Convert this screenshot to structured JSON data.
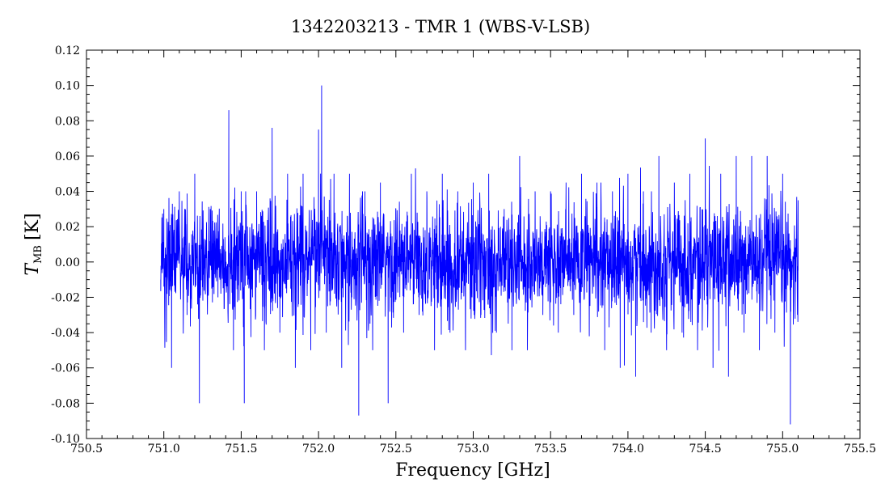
{
  "chart_data": {
    "type": "line",
    "title": "1342203213 - TMR 1 (WBS-V-LSB)",
    "xlabel": "Frequency [GHz]",
    "ylabel": {
      "main": "T",
      "subscript": "MB",
      "unit": "[K]"
    },
    "xlim": [
      750.5,
      755.5
    ],
    "ylim": [
      -0.1,
      0.12
    ],
    "x_ticks": [
      "750.5",
      "751.0",
      "751.5",
      "752.0",
      "752.5",
      "753.0",
      "753.5",
      "754.0",
      "754.5",
      "755.0",
      "755.5"
    ],
    "y_ticks": [
      "-0.10",
      "-0.08",
      "-0.06",
      "-0.04",
      "-0.02",
      "0.00",
      "0.02",
      "0.04",
      "0.06",
      "0.08",
      "0.10",
      "0.12"
    ],
    "grid": false,
    "series": [
      {
        "color": "#0000ff",
        "description": "noise-dominated spectrum, baseline ~0 K",
        "x_range": [
          750.98,
          755.1
        ],
        "x": [
          750.98,
          751.0,
          751.05,
          751.1,
          751.15,
          751.2,
          751.23,
          751.3,
          751.35,
          751.42,
          751.45,
          751.5,
          751.52,
          751.6,
          751.65,
          751.7,
          751.75,
          751.8,
          751.85,
          751.9,
          751.95,
          752.0,
          752.02,
          752.05,
          752.1,
          752.15,
          752.2,
          752.26,
          752.3,
          752.35,
          752.4,
          752.45,
          752.5,
          752.55,
          752.6,
          752.65,
          752.7,
          752.75,
          752.8,
          752.85,
          752.9,
          752.95,
          753.0,
          753.05,
          753.1,
          753.15,
          753.2,
          753.25,
          753.3,
          753.35,
          753.4,
          753.45,
          753.5,
          753.55,
          753.6,
          753.65,
          753.7,
          753.75,
          753.8,
          753.85,
          753.9,
          753.95,
          754.0,
          754.05,
          754.1,
          754.15,
          754.2,
          754.25,
          754.3,
          754.35,
          754.4,
          754.45,
          754.5,
          754.55,
          754.6,
          754.65,
          754.7,
          754.75,
          754.8,
          754.85,
          754.9,
          754.95,
          755.0,
          755.05,
          755.1
        ],
        "y": [
          -0.01,
          0.03,
          -0.06,
          0.04,
          -0.03,
          0.05,
          -0.08,
          0.03,
          -0.02,
          0.086,
          -0.05,
          0.04,
          -0.08,
          0.04,
          -0.05,
          0.076,
          -0.04,
          0.05,
          -0.06,
          0.05,
          -0.05,
          0.075,
          0.1,
          -0.04,
          0.05,
          -0.06,
          0.05,
          -0.087,
          0.04,
          -0.05,
          0.045,
          -0.08,
          0.03,
          -0.04,
          0.05,
          -0.03,
          0.04,
          -0.05,
          0.05,
          -0.04,
          0.04,
          -0.05,
          0.045,
          -0.03,
          0.05,
          -0.04,
          0.03,
          -0.05,
          0.06,
          -0.05,
          0.04,
          -0.03,
          0.04,
          -0.04,
          0.045,
          -0.03,
          0.05,
          -0.04,
          0.045,
          -0.05,
          0.04,
          -0.06,
          0.05,
          -0.065,
          0.04,
          -0.04,
          0.06,
          -0.05,
          0.045,
          -0.04,
          0.05,
          -0.05,
          0.07,
          -0.06,
          0.05,
          -0.065,
          0.06,
          -0.04,
          0.06,
          -0.05,
          0.06,
          -0.04,
          0.05,
          -0.092,
          0.035
        ]
      }
    ]
  }
}
